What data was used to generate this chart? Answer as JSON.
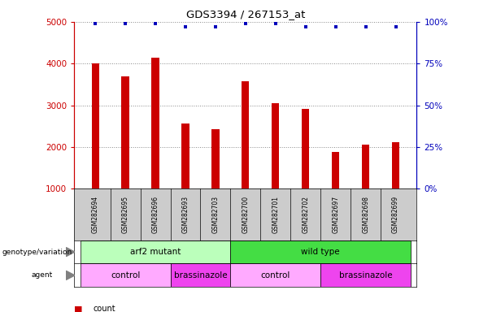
{
  "title": "GDS3394 / 267153_at",
  "samples": [
    "GSM282694",
    "GSM282695",
    "GSM282696",
    "GSM282693",
    "GSM282703",
    "GSM282700",
    "GSM282701",
    "GSM282702",
    "GSM282697",
    "GSM282698",
    "GSM282699"
  ],
  "counts": [
    4000,
    3700,
    4150,
    2570,
    2430,
    3580,
    3050,
    2920,
    1880,
    2060,
    2120
  ],
  "percentile_ranks": [
    99,
    99,
    99,
    97,
    97,
    99,
    99,
    97,
    97,
    97,
    97
  ],
  "bar_color": "#cc0000",
  "dot_color": "#0000bb",
  "ylim_left": [
    1000,
    5000
  ],
  "ylim_right": [
    0,
    100
  ],
  "yticks_left": [
    1000,
    2000,
    3000,
    4000,
    5000
  ],
  "yticks_right": [
    0,
    25,
    50,
    75,
    100
  ],
  "genotype_groups": [
    {
      "label": "arf2 mutant",
      "start": 0,
      "end": 5,
      "color": "#bbffbb"
    },
    {
      "label": "wild type",
      "start": 5,
      "end": 11,
      "color": "#44dd44"
    }
  ],
  "agent_groups": [
    {
      "label": "control",
      "start": 0,
      "end": 3,
      "color": "#ffaaff"
    },
    {
      "label": "brassinazole",
      "start": 3,
      "end": 5,
      "color": "#ee44ee"
    },
    {
      "label": "control",
      "start": 5,
      "end": 8,
      "color": "#ffaaff"
    },
    {
      "label": "brassinazole",
      "start": 8,
      "end": 11,
      "color": "#ee44ee"
    }
  ],
  "legend_count_color": "#cc0000",
  "legend_dot_color": "#0000bb",
  "axis_color_left": "#cc0000",
  "axis_color_right": "#0000bb",
  "background_color": "#ffffff",
  "grid_color": "#888888",
  "sample_box_color": "#cccccc",
  "bar_width": 0.25
}
